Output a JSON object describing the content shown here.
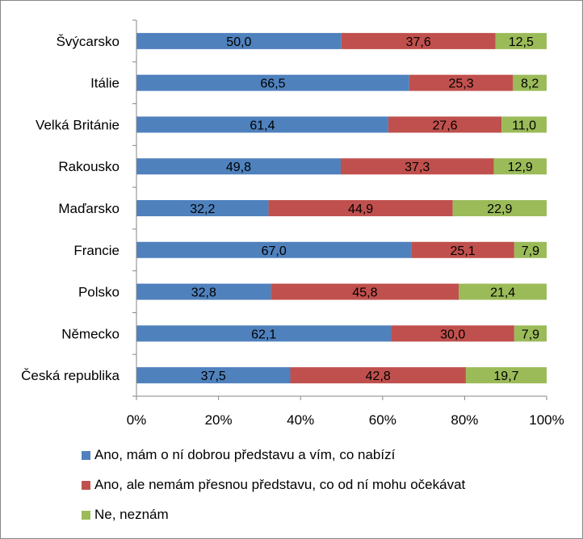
{
  "chart_data": {
    "type": "bar",
    "orientation": "horizontal",
    "stacked": "percent",
    "categories": [
      "Švýcarsko",
      "Itálie",
      "Velká Británie",
      "Rakousko",
      "Maďarsko",
      "Francie",
      "Polsko",
      "Německo",
      "Česká republika"
    ],
    "series": [
      {
        "name": "Ano, mám o ní dobrou představu a vím, co nabízí",
        "color": "#4F81BD",
        "values": [
          50.0,
          66.5,
          61.4,
          49.8,
          32.2,
          67.0,
          32.8,
          62.1,
          37.5
        ],
        "labels": [
          "50,0",
          "66,5",
          "61,4",
          "49,8",
          "32,2",
          "67,0",
          "32,8",
          "62,1",
          "37,5"
        ]
      },
      {
        "name": "Ano, ale nemám přesnou představu, co od ní mohu očekávat",
        "color": "#C0504D",
        "values": [
          37.6,
          25.3,
          27.6,
          37.3,
          44.9,
          25.1,
          45.8,
          30.0,
          42.8
        ],
        "labels": [
          "37,6",
          "25,3",
          "27,6",
          "37,3",
          "44,9",
          "25,1",
          "45,8",
          "30,0",
          "42,8"
        ]
      },
      {
        "name": "Ne, neznám",
        "color": "#9BBB59",
        "values": [
          12.5,
          8.2,
          11.0,
          12.9,
          22.9,
          7.9,
          21.4,
          7.9,
          19.7
        ],
        "labels": [
          "12,5",
          "8,2",
          "11,0",
          "12,9",
          "22,9",
          "7,9",
          "21,4",
          "7,9",
          "19,7"
        ]
      }
    ],
    "xlim": [
      0,
      100
    ],
    "x_ticks": [
      "0%",
      "20%",
      "40%",
      "60%",
      "80%",
      "100%"
    ],
    "grid": false,
    "legend_position": "bottom"
  }
}
